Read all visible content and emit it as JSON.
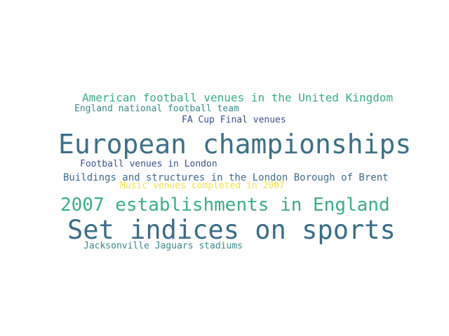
{
  "word_cloud": {
    "words": [
      {
        "text": "European championships",
        "color": "#3c7189"
      },
      {
        "text": "Set indices on sports",
        "color": "#3b6d8a"
      },
      {
        "text": "2007 establishments in England",
        "color": "#3aae8a"
      },
      {
        "text": "American football venues in the United Kingdom",
        "color": "#3aae8a"
      },
      {
        "text": "England national football team",
        "color": "#3b8a8d"
      },
      {
        "text": "FA Cup Final venues",
        "color": "#3b528b"
      },
      {
        "text": "Football venues in London",
        "color": "#3b528b"
      },
      {
        "text": "Buildings and structures in the London Borough of Brent",
        "color": "#3e6c8c"
      },
      {
        "text": "Music venues completed in 2007",
        "color": "#f1e34a"
      },
      {
        "text": "Jacksonville Jaguars stadiums",
        "color": "#3b8a8d"
      }
    ]
  }
}
